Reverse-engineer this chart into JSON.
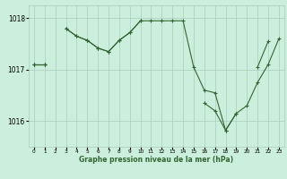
{
  "title": "Graphe pression niveau de la mer (hPa)",
  "hours": [
    0,
    1,
    2,
    3,
    4,
    5,
    6,
    7,
    8,
    9,
    10,
    11,
    12,
    13,
    14,
    15,
    16,
    17,
    18,
    19,
    20,
    21,
    22,
    23
  ],
  "line1": [
    1017.1,
    1017.1,
    null,
    1017.8,
    1017.65,
    1017.57,
    1017.42,
    1017.35,
    1017.57,
    1017.72,
    1017.95,
    1017.95,
    1017.95,
    1017.95,
    1017.95,
    1017.05,
    1016.6,
    1016.55,
    1015.82,
    1016.15,
    null,
    1017.05,
    1017.55,
    null
  ],
  "line2": [
    1017.1,
    1017.1,
    null,
    1017.8,
    1017.65,
    1017.57,
    1017.42,
    1017.35,
    1017.57,
    1017.72,
    1017.95,
    null,
    null,
    null,
    null,
    null,
    null,
    null,
    null,
    null,
    null,
    null,
    null,
    null
  ],
  "line3": [
    1017.1,
    1017.1,
    null,
    null,
    null,
    null,
    null,
    null,
    null,
    null,
    null,
    null,
    null,
    null,
    null,
    null,
    1016.35,
    1016.2,
    1015.82,
    1016.15,
    1016.3,
    1016.75,
    1017.1,
    1017.6
  ],
  "bg_color": "#cceedd",
  "grid_color": "#aaccbb",
  "line_color": "#336633",
  "ylim_lo": 1015.5,
  "ylim_hi": 1018.25,
  "yticks": [
    1016,
    1017,
    1018
  ]
}
